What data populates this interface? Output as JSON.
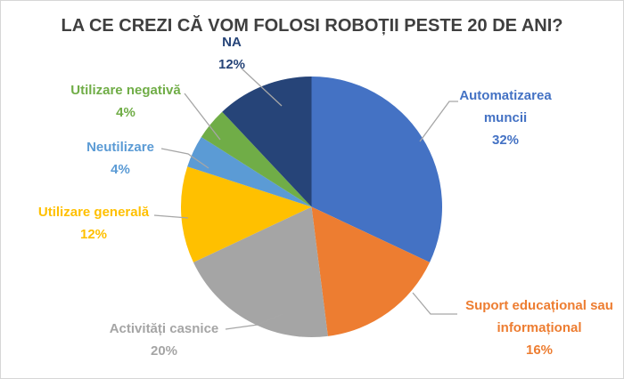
{
  "frame": {
    "background": "#ffffff",
    "border_color": "#d6d6d6"
  },
  "title": {
    "text": "LA CE CREZI CĂ VOM FOLOSI ROBOȚII PESTE 20 DE ANI?",
    "color": "#3f3f3f"
  },
  "chart_data": {
    "type": "pie",
    "title": "LA CE CREZI CĂ VOM FOLOSI ROBOȚII PESTE 20 DE ANI?",
    "unit": "percent",
    "direction": "clockwise",
    "start_angle_deg": 0,
    "legend_position": "none",
    "label_style": "outside-callouts-with-leader-lines",
    "leader_line_color": "#A6A6A6",
    "slices": [
      {
        "label": "Automatizarea muncii",
        "value": 32,
        "pct_label": "32%",
        "color": "#4472C4"
      },
      {
        "label": "Suport educațional sau informațional",
        "value": 16,
        "pct_label": "16%",
        "color": "#ED7D31"
      },
      {
        "label": "Activități casnice",
        "value": 20,
        "pct_label": "20%",
        "color": "#A5A5A5"
      },
      {
        "label": "Utilizare generală",
        "value": 12,
        "pct_label": "12%",
        "color": "#FFC000"
      },
      {
        "label": "Neutilizare",
        "value": 4,
        "pct_label": "4%",
        "color": "#5B9BD5"
      },
      {
        "label": "Utilizare negativă",
        "value": 4,
        "pct_label": "4%",
        "color": "#70AD47"
      },
      {
        "label": "NA",
        "value": 12,
        "pct_label": "12%",
        "color": "#264478"
      }
    ]
  }
}
